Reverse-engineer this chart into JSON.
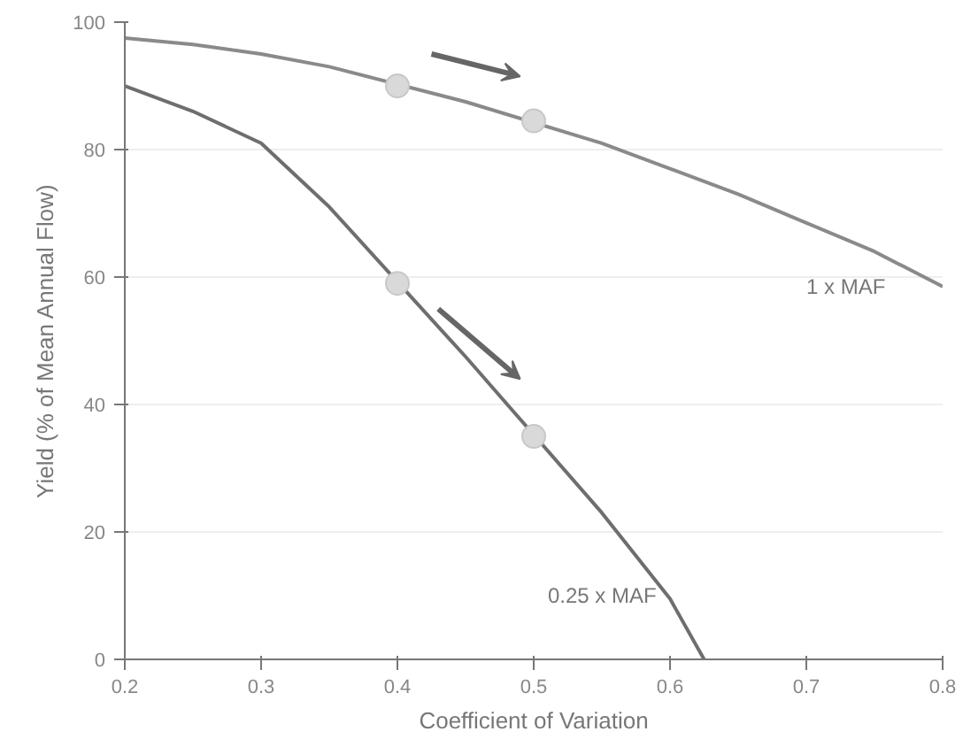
{
  "chart_data": {
    "type": "line",
    "xlabel": "Coefficient of Variation",
    "ylabel": "Yield (% of Mean Annual Flow)",
    "xlim": [
      0.2,
      0.8
    ],
    "ylim": [
      0,
      100
    ],
    "xticks": [
      0.2,
      0.3,
      0.4,
      0.5,
      0.6,
      0.7,
      0.8
    ],
    "yticks": [
      0,
      20,
      40,
      60,
      80,
      100
    ],
    "grid": "y",
    "marker": "none",
    "line_style": "solid",
    "series": [
      {
        "name": "1 x MAF",
        "color": "#8a8a8a",
        "x": [
          0.2,
          0.25,
          0.3,
          0.35,
          0.45,
          0.55,
          0.6,
          0.65,
          0.7,
          0.75,
          0.8
        ],
        "values": [
          97.5,
          96.5,
          95,
          93,
          87.5,
          81,
          77,
          73,
          68.5,
          64,
          58.5
        ]
      },
      {
        "name": "0.25 x MAF",
        "color": "#6e6e6e",
        "x": [
          0.2,
          0.25,
          0.3,
          0.35,
          0.45,
          0.55,
          0.6,
          0.625
        ],
        "values": [
          90,
          86,
          81,
          71,
          47.5,
          23,
          9.5,
          0
        ]
      },
      {
        "type": "scatter",
        "marker": "circle",
        "color": "#d9d9d9",
        "x": [
          0.4,
          0.5,
          0.4,
          0.5
        ],
        "values": [
          90,
          84.5,
          59,
          35
        ]
      }
    ]
  }
}
